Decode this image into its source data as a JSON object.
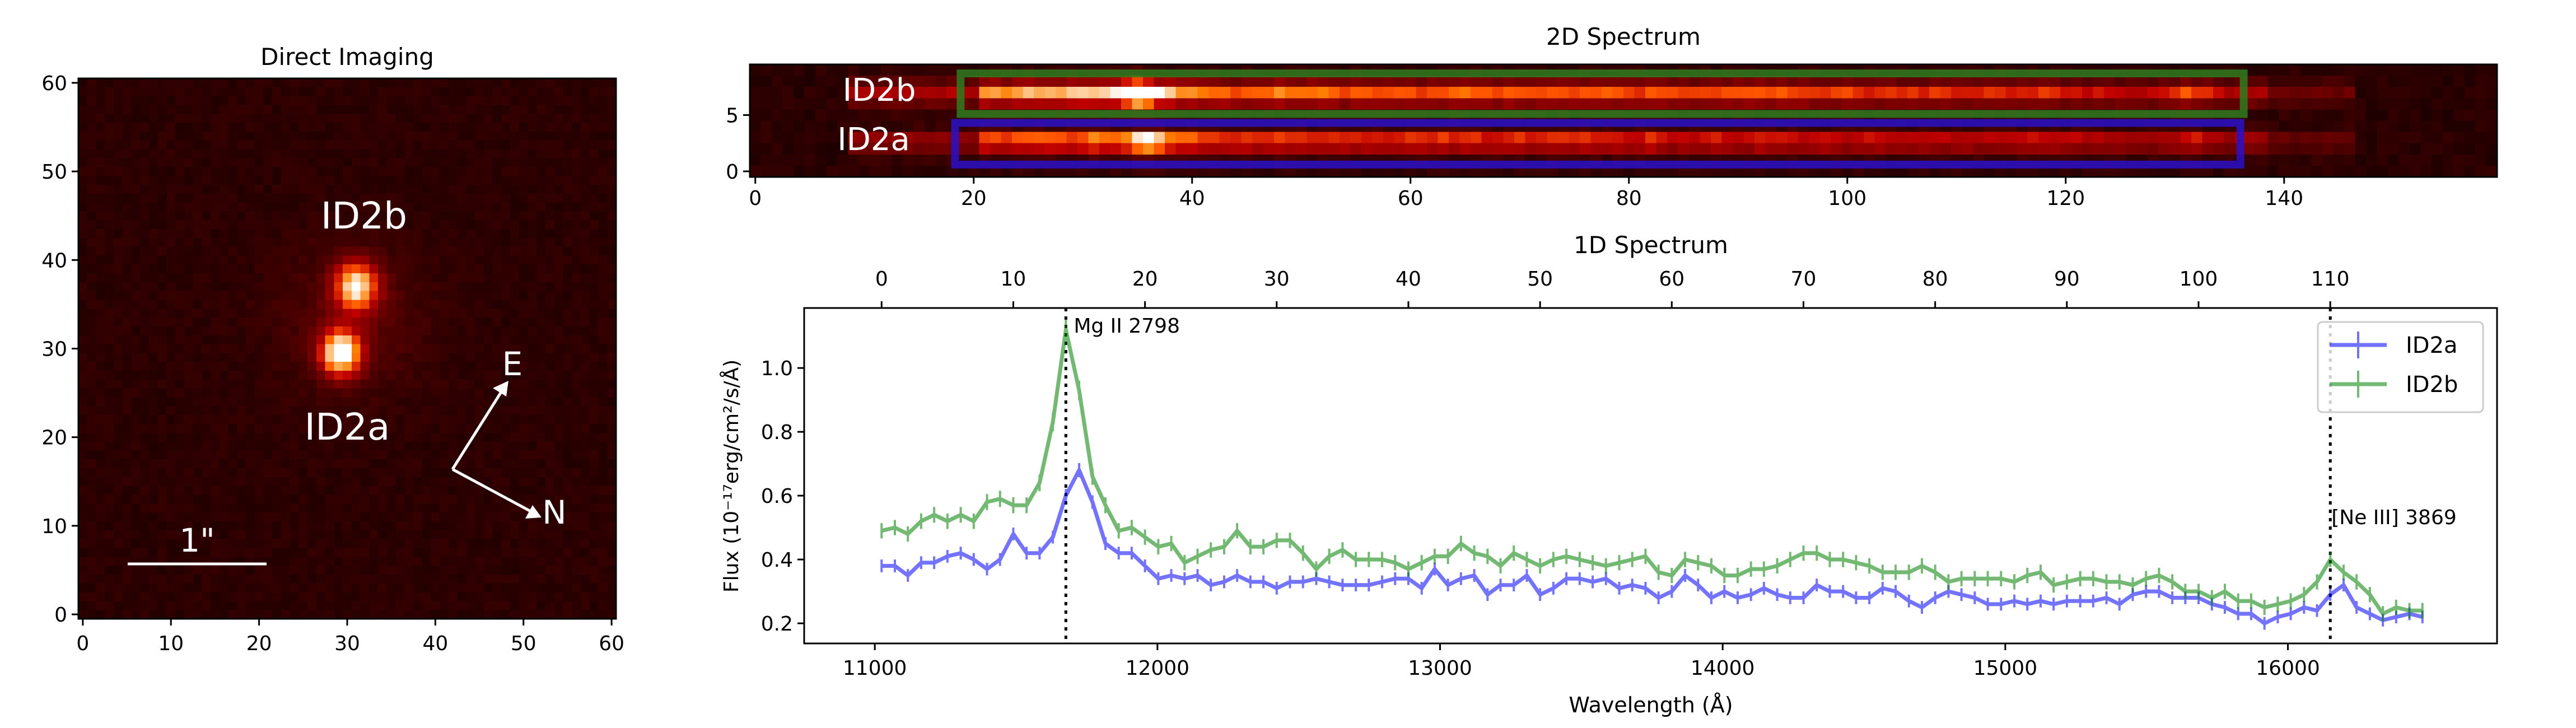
{
  "direct_imaging": {
    "title": "Direct Imaging",
    "label_b": "ID2b",
    "label_a": "ID2a",
    "compass_e": "E",
    "compass_n": "N",
    "scale_bar": "1\"",
    "xticks": [
      0,
      10,
      20,
      30,
      40,
      50,
      60
    ],
    "yticks": [
      0,
      10,
      20,
      30,
      40,
      50,
      60
    ],
    "xlim": [
      -0.5,
      60.5
    ],
    "ylim": [
      -0.5,
      60.5
    ],
    "colormap": "gist_heat"
  },
  "spectrum_2d": {
    "title": "2D Spectrum",
    "label_b": "ID2b",
    "label_a": "ID2a",
    "xticks": [
      0,
      20,
      40,
      60,
      80,
      100,
      120,
      140
    ],
    "yticks": [
      0,
      5
    ],
    "xlim": [
      -0.5,
      159.5
    ],
    "ylim": [
      -0.5,
      9.5
    ],
    "box_b_color": "#2e7d1e",
    "box_a_color": "#2a10c8"
  },
  "chart_data": {
    "type": "line",
    "title": "1D Spectrum",
    "xlabel": "Wavelength (Å)",
    "ylabel": "Flux (10⁻¹⁷erg/cm²/s/Å)",
    "xlim": [
      10750,
      16740
    ],
    "ylim": [
      0.137,
      1.188
    ],
    "xticks": [
      11000,
      12000,
      13000,
      14000,
      15000,
      16000
    ],
    "yticks": [
      0.2,
      0.4,
      0.6,
      0.8,
      1.0
    ],
    "top_xticks": [
      0,
      10,
      20,
      30,
      40,
      50,
      60,
      70,
      80,
      90,
      100,
      110
    ],
    "legend": "top-right",
    "grid": false,
    "yerr": 0.02,
    "lines": [
      {
        "label": "Mg II 2798",
        "x": 11676
      },
      {
        "label": "[Ne III] 3869",
        "x": 16150
      }
    ],
    "x": [
      11024,
      11071,
      11117,
      11164,
      11210,
      11257,
      11304,
      11350,
      11397,
      11443,
      11490,
      11537,
      11583,
      11630,
      11676,
      11723,
      11770,
      11816,
      11863,
      11909,
      11956,
      12003,
      12049,
      12096,
      12142,
      12189,
      12236,
      12282,
      12329,
      12375,
      12422,
      12469,
      12515,
      12562,
      12608,
      12655,
      12702,
      12748,
      12795,
      12841,
      12888,
      12935,
      12981,
      13028,
      13074,
      13121,
      13168,
      13214,
      13261,
      13307,
      13354,
      13401,
      13447,
      13494,
      13540,
      13587,
      13634,
      13680,
      13727,
      13773,
      13820,
      13867,
      13913,
      13960,
      14006,
      14053,
      14100,
      14146,
      14193,
      14239,
      14286,
      14333,
      14379,
      14426,
      14472,
      14519,
      14566,
      14612,
      14659,
      14705,
      14752,
      14799,
      14845,
      14892,
      14938,
      14985,
      15032,
      15078,
      15125,
      15171,
      15218,
      15265,
      15311,
      15358,
      15404,
      15451,
      15498,
      15544,
      15591,
      15637,
      15684,
      15731,
      15777,
      15824,
      15870,
      15917,
      15964,
      16010,
      16057,
      16103,
      16150,
      16197,
      16243,
      16290,
      16336,
      16383,
      16430,
      16476
    ],
    "series": [
      {
        "name": "ID2a",
        "color": "#0000ff",
        "values": [
          0.38,
          0.38,
          0.35,
          0.39,
          0.39,
          0.41,
          0.42,
          0.4,
          0.37,
          0.4,
          0.48,
          0.42,
          0.42,
          0.47,
          0.6,
          0.68,
          0.58,
          0.45,
          0.42,
          0.42,
          0.38,
          0.34,
          0.35,
          0.34,
          0.35,
          0.32,
          0.33,
          0.35,
          0.33,
          0.33,
          0.31,
          0.33,
          0.33,
          0.34,
          0.33,
          0.32,
          0.32,
          0.32,
          0.33,
          0.34,
          0.34,
          0.31,
          0.37,
          0.32,
          0.34,
          0.35,
          0.29,
          0.32,
          0.32,
          0.35,
          0.29,
          0.31,
          0.34,
          0.34,
          0.33,
          0.34,
          0.31,
          0.32,
          0.31,
          0.28,
          0.3,
          0.35,
          0.32,
          0.28,
          0.3,
          0.28,
          0.29,
          0.31,
          0.29,
          0.28,
          0.28,
          0.32,
          0.3,
          0.3,
          0.28,
          0.28,
          0.31,
          0.3,
          0.27,
          0.25,
          0.28,
          0.3,
          0.29,
          0.28,
          0.26,
          0.26,
          0.27,
          0.26,
          0.27,
          0.26,
          0.27,
          0.27,
          0.27,
          0.28,
          0.26,
          0.29,
          0.3,
          0.3,
          0.28,
          0.28,
          0.28,
          0.26,
          0.25,
          0.23,
          0.23,
          0.2,
          0.22,
          0.23,
          0.25,
          0.24,
          0.29,
          0.32,
          0.25,
          0.23,
          0.21,
          0.22,
          0.23,
          0.22
        ]
      },
      {
        "name": "ID2b",
        "color": "#008000",
        "values": [
          0.49,
          0.5,
          0.48,
          0.52,
          0.54,
          0.52,
          0.54,
          0.52,
          0.58,
          0.59,
          0.57,
          0.57,
          0.64,
          0.83,
          1.12,
          0.93,
          0.66,
          0.57,
          0.49,
          0.5,
          0.47,
          0.44,
          0.45,
          0.39,
          0.41,
          0.43,
          0.44,
          0.49,
          0.44,
          0.44,
          0.46,
          0.46,
          0.42,
          0.37,
          0.41,
          0.43,
          0.4,
          0.4,
          0.4,
          0.39,
          0.37,
          0.39,
          0.41,
          0.41,
          0.45,
          0.42,
          0.41,
          0.38,
          0.42,
          0.4,
          0.38,
          0.4,
          0.41,
          0.4,
          0.39,
          0.38,
          0.39,
          0.4,
          0.41,
          0.36,
          0.35,
          0.4,
          0.39,
          0.38,
          0.35,
          0.35,
          0.37,
          0.37,
          0.38,
          0.4,
          0.42,
          0.42,
          0.4,
          0.4,
          0.39,
          0.38,
          0.36,
          0.36,
          0.36,
          0.38,
          0.36,
          0.33,
          0.34,
          0.34,
          0.34,
          0.34,
          0.33,
          0.35,
          0.36,
          0.32,
          0.33,
          0.34,
          0.34,
          0.33,
          0.33,
          0.32,
          0.34,
          0.35,
          0.33,
          0.3,
          0.3,
          0.28,
          0.3,
          0.27,
          0.27,
          0.25,
          0.26,
          0.27,
          0.29,
          0.33,
          0.4,
          0.36,
          0.33,
          0.29,
          0.23,
          0.25,
          0.24,
          0.24
        ]
      }
    ]
  }
}
